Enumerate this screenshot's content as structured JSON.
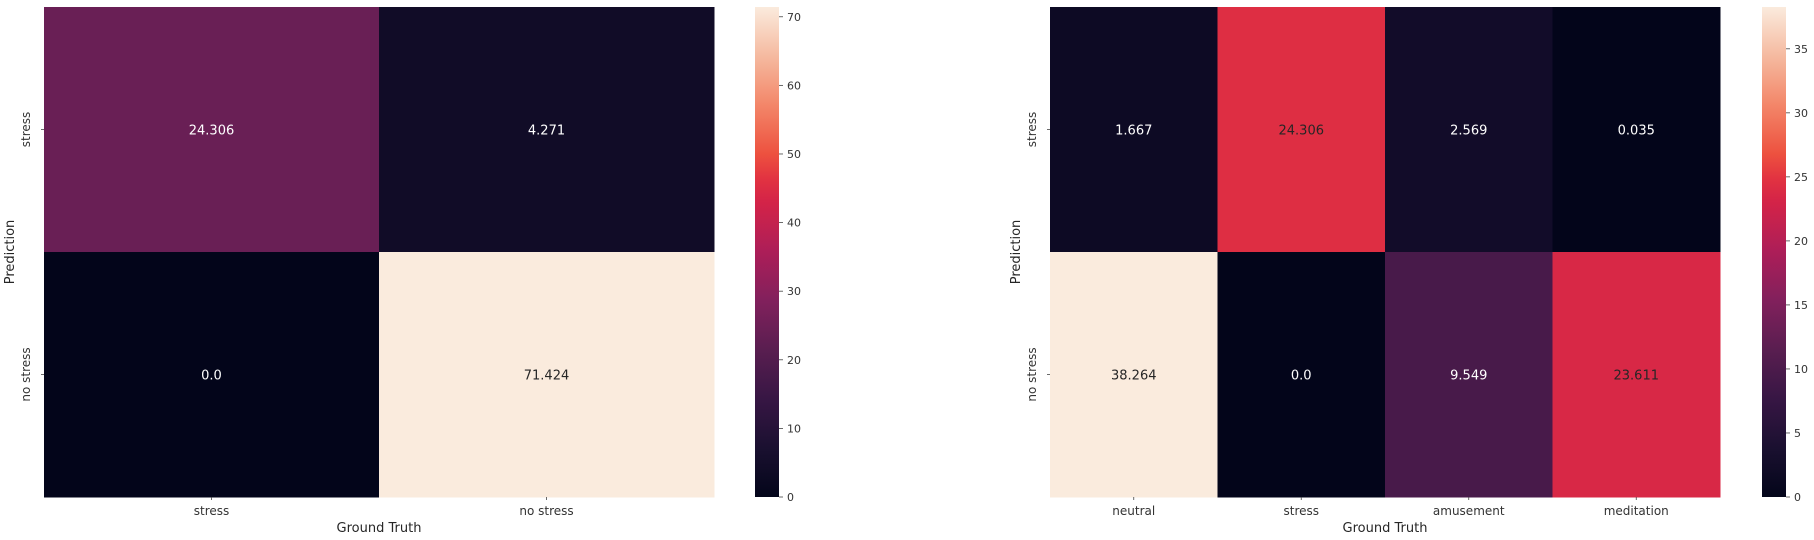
{
  "chart_data": [
    {
      "type": "heatmap",
      "title": "",
      "xlabel": "Ground Truth",
      "ylabel": "Prediction",
      "x_categories": [
        "stress",
        "no stress"
      ],
      "y_categories": [
        "stress",
        "no stress"
      ],
      "values": [
        [
          24.306,
          4.271
        ],
        [
          0.0,
          71.424
        ]
      ],
      "value_labels": [
        [
          "24.306",
          "4.271"
        ],
        [
          "0.0",
          "71.424"
        ]
      ],
      "colorbar": {
        "colormap": "rocket",
        "min": 0,
        "max": 71.424,
        "ticks": [
          0,
          10,
          20,
          30,
          40,
          50,
          60,
          70
        ]
      },
      "grid": false,
      "legend": "colorbar-right"
    },
    {
      "type": "heatmap",
      "title": "",
      "xlabel": "Ground Truth",
      "ylabel": "Prediction",
      "x_categories": [
        "neutral",
        "stress",
        "amusement",
        "meditation"
      ],
      "y_categories": [
        "stress",
        "no stress"
      ],
      "values": [
        [
          1.667,
          24.306,
          2.569,
          0.035
        ],
        [
          38.264,
          0.0,
          9.549,
          23.611
        ]
      ],
      "value_labels": [
        [
          "1.667",
          "24.306",
          "2.569",
          "0.035"
        ],
        [
          "38.264",
          "0.0",
          "9.549",
          "23.611"
        ]
      ],
      "colorbar": {
        "colormap": "rocket",
        "min": 0,
        "max": 38.264,
        "ticks": [
          0,
          5,
          10,
          15,
          20,
          25,
          30,
          35
        ]
      },
      "grid": false,
      "legend": "colorbar-right"
    }
  ]
}
